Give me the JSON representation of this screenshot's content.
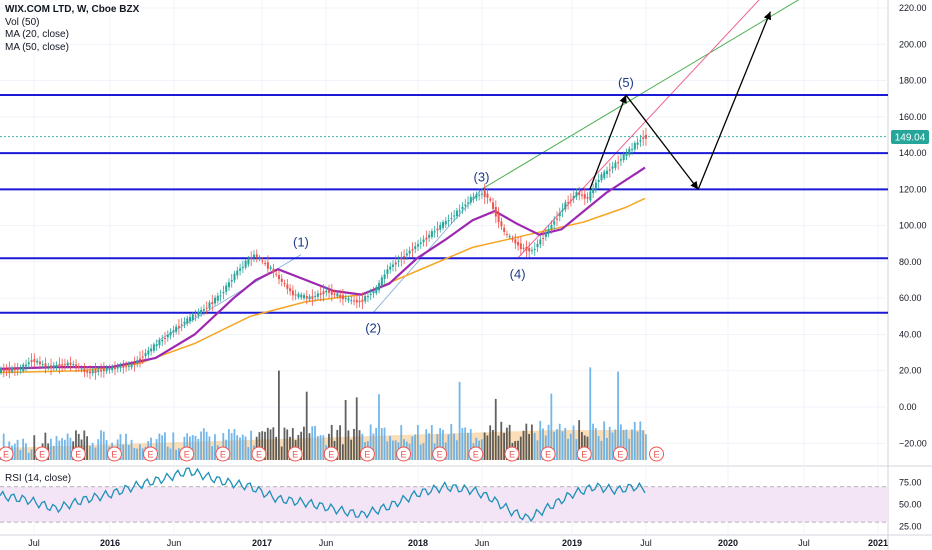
{
  "legend": {
    "title": "WIX.COM LTD, W, Cboe BZX",
    "vol": "Vol (50)",
    "ma20": "MA (20, close)",
    "ma50": "MA (50, close)"
  },
  "rsi_label": "RSI (14, close)",
  "price_badge": "149.04",
  "colors": {
    "up": "#26a69a",
    "down": "#ef5350",
    "ma20": "#9c27b0",
    "ma50": "#f5a623",
    "hline": "#1a1ad6",
    "channel_green": "#4caf50",
    "channel_red": "#f06292",
    "rsi": "#1e90b8",
    "rsi_fill": "#f3e5f5",
    "badge": "#26a69a",
    "vol_up": "#5aa9e6",
    "vol_down": "#444444"
  },
  "chart_data": {
    "type": "candlestick",
    "price_axis": {
      "ticks": [
        "220.00",
        "200.00",
        "180.00",
        "160.00",
        "140.00",
        "120.00",
        "100.00",
        "80.00",
        "60.00",
        "40.00",
        "20.00",
        "0.00",
        "−20.00"
      ],
      "ylim": [
        -30,
        225
      ]
    },
    "rsi_axis": {
      "ticks": [
        "75.00",
        "50.00",
        "25.00"
      ],
      "ylim": [
        20,
        90
      ],
      "bands": [
        70,
        30
      ]
    },
    "time_axis": [
      "Jul",
      "2016",
      "Jun",
      "2017",
      "Jun",
      "2018",
      "Jun",
      "2019",
      "Jul",
      "2020",
      "Jul",
      "2021"
    ],
    "horizontal_levels": [
      172,
      140,
      120,
      82,
      52
    ],
    "last_price": 149.04,
    "close_series": {
      "start": "2015-05",
      "interval": "1 week",
      "points": [
        [
          0,
          20
        ],
        [
          8,
          21
        ],
        [
          12,
          26
        ],
        [
          18,
          22
        ],
        [
          26,
          24
        ],
        [
          32,
          19
        ],
        [
          40,
          21
        ],
        [
          48,
          23
        ],
        [
          58,
          36
        ],
        [
          66,
          46
        ],
        [
          74,
          54
        ],
        [
          80,
          62
        ],
        [
          86,
          75
        ],
        [
          92,
          84
        ],
        [
          98,
          76
        ],
        [
          106,
          62
        ],
        [
          112,
          60
        ],
        [
          118,
          64
        ],
        [
          126,
          59
        ],
        [
          130,
          58
        ],
        [
          136,
          65
        ],
        [
          140,
          76
        ],
        [
          148,
          86
        ],
        [
          156,
          96
        ],
        [
          164,
          106
        ],
        [
          170,
          115
        ],
        [
          174,
          118
        ],
        [
          176,
          116
        ],
        [
          182,
          96
        ],
        [
          188,
          88
        ],
        [
          192,
          86
        ],
        [
          198,
          98
        ],
        [
          204,
          112
        ],
        [
          208,
          118
        ],
        [
          212,
          115
        ],
        [
          216,
          126
        ],
        [
          222,
          134
        ],
        [
          228,
          143
        ],
        [
          232,
          149
        ]
      ]
    },
    "ma20_series": [
      [
        0,
        21
      ],
      [
        20,
        22
      ],
      [
        40,
        22
      ],
      [
        56,
        27
      ],
      [
        70,
        40
      ],
      [
        84,
        60
      ],
      [
        92,
        70
      ],
      [
        100,
        76
      ],
      [
        110,
        70
      ],
      [
        120,
        64
      ],
      [
        130,
        62
      ],
      [
        140,
        68
      ],
      [
        150,
        82
      ],
      [
        160,
        92
      ],
      [
        170,
        103
      ],
      [
        178,
        108
      ],
      [
        186,
        101
      ],
      [
        194,
        95
      ],
      [
        202,
        98
      ],
      [
        210,
        108
      ],
      [
        218,
        118
      ],
      [
        226,
        126
      ],
      [
        232,
        132
      ]
    ],
    "ma50_series": [
      [
        0,
        19
      ],
      [
        30,
        20
      ],
      [
        50,
        24
      ],
      [
        70,
        35
      ],
      [
        90,
        50
      ],
      [
        110,
        58
      ],
      [
        130,
        62
      ],
      [
        150,
        75
      ],
      [
        170,
        88
      ],
      [
        190,
        95
      ],
      [
        210,
        102
      ],
      [
        225,
        110
      ],
      [
        232,
        115
      ]
    ],
    "projection": {
      "waves": [
        {
          "label": "(1)",
          "x": "2017-06",
          "y": 84
        },
        {
          "label": "(2)",
          "x": "2017-12",
          "y": 52
        },
        {
          "label": "(3)",
          "x": "2018-09",
          "y": 120
        },
        {
          "label": "(4)",
          "x": "2018-12",
          "y": 82
        },
        {
          "label": "(5)",
          "x": "2019-09",
          "y": 172
        }
      ],
      "arrow_path": [
        [
          "2019-06",
          120
        ],
        [
          "2019-09",
          172
        ],
        [
          "2020-03",
          120
        ],
        [
          "2020-09",
          218
        ]
      ]
    },
    "earnings_marker": "E",
    "rsi_series": [
      [
        0,
        60
      ],
      [
        10,
        55
      ],
      [
        20,
        45
      ],
      [
        30,
        55
      ],
      [
        40,
        62
      ],
      [
        50,
        72
      ],
      [
        60,
        80
      ],
      [
        68,
        88
      ],
      [
        74,
        82
      ],
      [
        80,
        76
      ],
      [
        90,
        70
      ],
      [
        100,
        56
      ],
      [
        110,
        52
      ],
      [
        120,
        45
      ],
      [
        130,
        38
      ],
      [
        140,
        48
      ],
      [
        150,
        62
      ],
      [
        160,
        70
      ],
      [
        170,
        66
      ],
      [
        176,
        58
      ],
      [
        184,
        42
      ],
      [
        190,
        34
      ],
      [
        198,
        48
      ],
      [
        206,
        62
      ],
      [
        214,
        70
      ],
      [
        222,
        66
      ],
      [
        228,
        70
      ],
      [
        232,
        68
      ]
    ]
  }
}
